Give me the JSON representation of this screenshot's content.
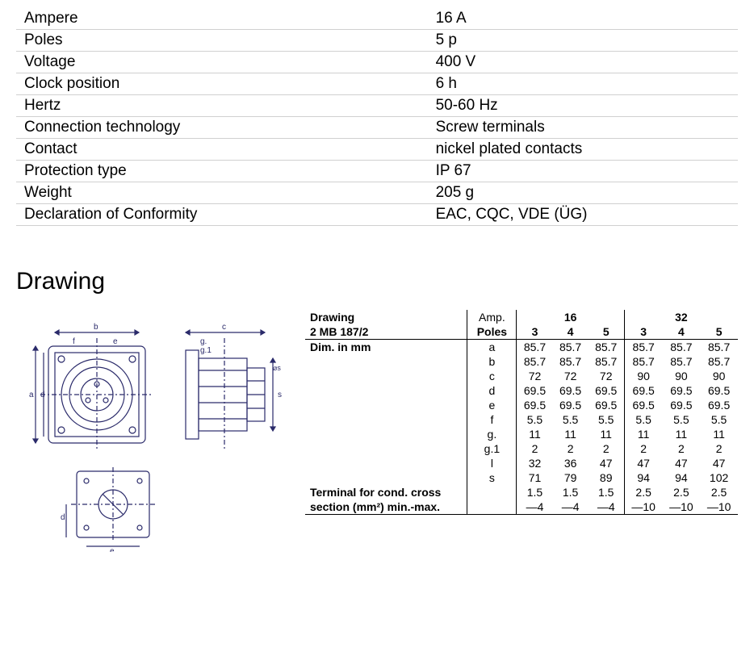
{
  "spec_table": {
    "rows": [
      {
        "label": "Ampere",
        "value": "16 A"
      },
      {
        "label": "Poles",
        "value": "5 p"
      },
      {
        "label": "Voltage",
        "value": "400 V"
      },
      {
        "label": "Clock position",
        "value": "6 h"
      },
      {
        "label": "Hertz",
        "value": "50-60 Hz"
      },
      {
        "label": "Connection technology",
        "value": "Screw terminals"
      },
      {
        "label": "Contact",
        "value": "nickel plated contacts"
      },
      {
        "label": "Protection type",
        "value": "IP 67"
      },
      {
        "label": "Weight",
        "value": "205 g"
      },
      {
        "label": "Declaration of Conformity",
        "value": "EAC, CQC, VDE (ÜG)"
      }
    ]
  },
  "drawing_heading": "Drawing",
  "dim_table": {
    "header_left": [
      "Drawing",
      "2 MB 187/2",
      "Dim. in mm"
    ],
    "amp_label": "Amp.",
    "poles_label": "Poles",
    "amp_groups": [
      "16",
      "32"
    ],
    "poles": [
      "3",
      "4",
      "5",
      "3",
      "4",
      "5"
    ],
    "rows": [
      {
        "key": "a",
        "vals": [
          "85.7",
          "85.7",
          "85.7",
          "85.7",
          "85.7",
          "85.7"
        ]
      },
      {
        "key": "b",
        "vals": [
          "85.7",
          "85.7",
          "85.7",
          "85.7",
          "85.7",
          "85.7"
        ]
      },
      {
        "key": "c",
        "vals": [
          "72",
          "72",
          "72",
          "90",
          "90",
          "90"
        ]
      },
      {
        "key": "d",
        "vals": [
          "69.5",
          "69.5",
          "69.5",
          "69.5",
          "69.5",
          "69.5"
        ]
      },
      {
        "key": "e",
        "vals": [
          "69.5",
          "69.5",
          "69.5",
          "69.5",
          "69.5",
          "69.5"
        ]
      },
      {
        "key": "f",
        "vals": [
          "5.5",
          "5.5",
          "5.5",
          "5.5",
          "5.5",
          "5.5"
        ]
      },
      {
        "key": "g.",
        "vals": [
          "11",
          "11",
          "11",
          "11",
          "11",
          "11"
        ]
      },
      {
        "key": "g.1",
        "vals": [
          "2",
          "2",
          "2",
          "2",
          "2",
          "2"
        ]
      },
      {
        "key": "l",
        "vals": [
          "32",
          "36",
          "47",
          "47",
          "47",
          "47"
        ]
      },
      {
        "key": "s",
        "vals": [
          "71",
          "79",
          "89",
          "94",
          "94",
          "102"
        ]
      }
    ],
    "terminal_label_1": "Terminal for cond. cross",
    "terminal_label_2": "section (mm²) min.-max.",
    "terminal_row_1": [
      "1.5",
      "1.5",
      "1.5",
      "2.5",
      "2.5",
      "2.5"
    ],
    "terminal_row_2": [
      "—4",
      "—4",
      "—4",
      "—10",
      "—10",
      "—10"
    ]
  },
  "diagram": {
    "stroke": "#2a2a6a",
    "fill": "#ffffff",
    "dim_labels": [
      "a",
      "b",
      "c",
      "d",
      "e",
      "f",
      "g.",
      "g.1",
      "l",
      "s"
    ]
  }
}
